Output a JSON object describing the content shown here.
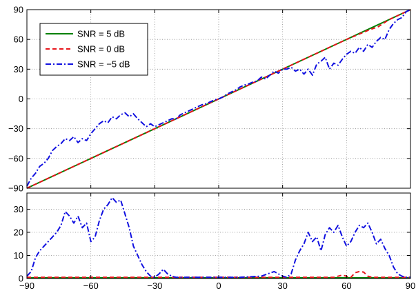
{
  "chart_data": [
    {
      "type": "line",
      "panel": "top",
      "xlim": [
        -90,
        90
      ],
      "ylim": [
        -90,
        90
      ],
      "xticks": [
        -90,
        -60,
        -30,
        0,
        30,
        60,
        90
      ],
      "yticks": [
        -90,
        -60,
        -30,
        0,
        30,
        60,
        90
      ],
      "ytick_labels": [
        "−90",
        "−60",
        "−30",
        "0",
        "30",
        "60",
        "90"
      ],
      "grid": true,
      "legend_position": "top-left",
      "series": [
        {
          "name": "SNR = 5 dB",
          "color": "#008000",
          "style": "solid",
          "x": [
            -90,
            90
          ],
          "y": [
            -90,
            90
          ]
        },
        {
          "name": "SNR = 0 dB",
          "color": "#e8141a",
          "style": "dashed",
          "x": [
            -90,
            -60,
            -30,
            0,
            30,
            60,
            70,
            75,
            80,
            85,
            90
          ],
          "y": [
            -90,
            -60,
            -30,
            0,
            30,
            60,
            69,
            73,
            80,
            85,
            90
          ]
        },
        {
          "name": "SNR = −5 dB",
          "color": "#1010e0",
          "style": "dashdot",
          "x": [
            -90,
            -88,
            -86,
            -84,
            -82,
            -80,
            -78,
            -76,
            -74,
            -72,
            -70,
            -68,
            -66,
            -64,
            -62,
            -60,
            -58,
            -56,
            -54,
            -52,
            -50,
            -48,
            -46,
            -44,
            -42,
            -40,
            -38,
            -36,
            -34,
            -32,
            -30,
            -28,
            -26,
            -24,
            -22,
            -20,
            -18,
            -16,
            -14,
            -12,
            -10,
            -8,
            -6,
            -4,
            -2,
            0,
            2,
            4,
            6,
            8,
            10,
            12,
            14,
            16,
            18,
            20,
            22,
            24,
            26,
            28,
            30,
            32,
            34,
            36,
            38,
            40,
            42,
            44,
            46,
            48,
            50,
            52,
            54,
            56,
            58,
            60,
            62,
            64,
            66,
            68,
            70,
            72,
            74,
            76,
            78,
            80,
            82,
            84,
            86,
            88,
            90
          ],
          "y": [
            -88,
            -80,
            -75,
            -68,
            -65,
            -60,
            -52,
            -48,
            -45,
            -40,
            -42,
            -38,
            -44,
            -40,
            -42,
            -35,
            -30,
            -25,
            -22,
            -24,
            -18,
            -20,
            -16,
            -14,
            -18,
            -15,
            -20,
            -24,
            -28,
            -25,
            -28,
            -26,
            -24,
            -22,
            -20,
            -20,
            -16,
            -14,
            -12,
            -10,
            -8,
            -6,
            -5,
            -3,
            -1,
            0,
            2,
            5,
            7,
            9,
            12,
            14,
            15,
            17,
            18,
            22,
            20,
            24,
            28,
            26,
            30,
            30,
            32,
            28,
            30,
            25,
            30,
            24,
            35,
            38,
            42,
            30,
            36,
            34,
            40,
            45,
            48,
            46,
            52,
            48,
            55,
            52,
            58,
            62,
            60,
            70,
            76,
            80,
            82,
            88,
            90
          ]
        }
      ]
    },
    {
      "type": "line",
      "panel": "bottom",
      "xlim": [
        -90,
        90
      ],
      "ylim": [
        0,
        37
      ],
      "xticks": [
        -90,
        -60,
        -30,
        0,
        30,
        60,
        90
      ],
      "xtick_labels": [
        "−90",
        "−60",
        "−30",
        "0",
        "30",
        "60",
        "90"
      ],
      "yticks": [
        0,
        10,
        20,
        30
      ],
      "grid": true,
      "series": [
        {
          "name": "SNR = 5 dB",
          "color": "#008000",
          "style": "solid",
          "x": [
            -90,
            90
          ],
          "y": [
            0.3,
            0.3
          ]
        },
        {
          "name": "SNR = 0 dB",
          "color": "#e8141a",
          "style": "dashed",
          "x": [
            -90,
            54,
            58,
            62,
            64,
            66,
            68,
            70,
            72,
            74,
            90
          ],
          "y": [
            0.5,
            0.5,
            1.5,
            0.5,
            2.5,
            3,
            2.8,
            1,
            0.5,
            0.5,
            0.5
          ]
        },
        {
          "name": "SNR = −5 dB",
          "color": "#1010e0",
          "style": "dashdot",
          "x": [
            -90,
            -88,
            -86,
            -84,
            -82,
            -80,
            -78,
            -76,
            -74,
            -72,
            -70,
            -68,
            -66,
            -64,
            -62,
            -60,
            -58,
            -56,
            -54,
            -52,
            -50,
            -48,
            -46,
            -44,
            -42,
            -40,
            -38,
            -36,
            -34,
            -32,
            -30,
            -28,
            -26,
            -24,
            -22,
            -20,
            -10,
            0,
            10,
            20,
            26,
            30,
            32,
            34,
            36,
            38,
            40,
            42,
            44,
            46,
            48,
            50,
            52,
            54,
            56,
            58,
            60,
            62,
            64,
            66,
            68,
            70,
            72,
            74,
            76,
            78,
            80,
            82,
            84,
            86,
            88,
            90
          ],
          "y": [
            1,
            3,
            9,
            12,
            14,
            16,
            18,
            20,
            23,
            29,
            27,
            24,
            27,
            22,
            24,
            16,
            18,
            25,
            30,
            32,
            35,
            33,
            34,
            28,
            22,
            14,
            10,
            6,
            3,
            1,
            0.5,
            2,
            4,
            2,
            1,
            0.5,
            0.5,
            0.5,
            0.5,
            1,
            3,
            1,
            0.5,
            2,
            8,
            12,
            15,
            20,
            16,
            18,
            12,
            19,
            22,
            20,
            23,
            18,
            14,
            16,
            20,
            23,
            22,
            24,
            20,
            15,
            17,
            13,
            10,
            5,
            2,
            1,
            0.5,
            0.5
          ]
        }
      ]
    }
  ]
}
